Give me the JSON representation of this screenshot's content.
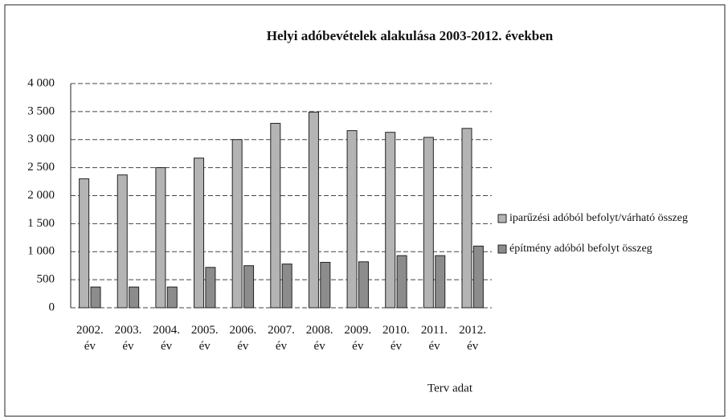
{
  "chart_data": {
    "type": "bar",
    "title": "Helyi adóbevételek alakulása 2003-2012. években",
    "categories": [
      "2002. év",
      "2003. év",
      "2004. év",
      "2005. év",
      "2006. év",
      "2007. év",
      "2008. év",
      "2009. év",
      "2010. év",
      "2011. év",
      "2012. év"
    ],
    "series": [
      {
        "name": "iparűzési adóból befolyt/várható összeg",
        "color": "#b4b4b4",
        "values": [
          2300,
          2370,
          2500,
          2670,
          3000,
          3290,
          3490,
          3160,
          3130,
          3040,
          3200
        ]
      },
      {
        "name": "építmény adóból befolyt összeg",
        "color": "#8c8c8c",
        "values": [
          370,
          370,
          370,
          720,
          750,
          780,
          810,
          820,
          930,
          930,
          1100
        ]
      }
    ],
    "ylim": [
      0,
      4000
    ],
    "yticks": [
      0,
      500,
      {
        "value": 1000,
        "label": "1 000"
      },
      {
        "value": 1500,
        "label": "1 500"
      },
      {
        "value": 2000,
        "label": "2 000"
      },
      {
        "value": 2500,
        "label": "2 500"
      },
      {
        "value": 3000,
        "label": "3 000"
      },
      {
        "value": 3500,
        "label": "3 500"
      },
      {
        "value": 4000,
        "label": "4 000"
      }
    ],
    "grid": true,
    "legend": "right",
    "annotation": "Terv adat"
  }
}
